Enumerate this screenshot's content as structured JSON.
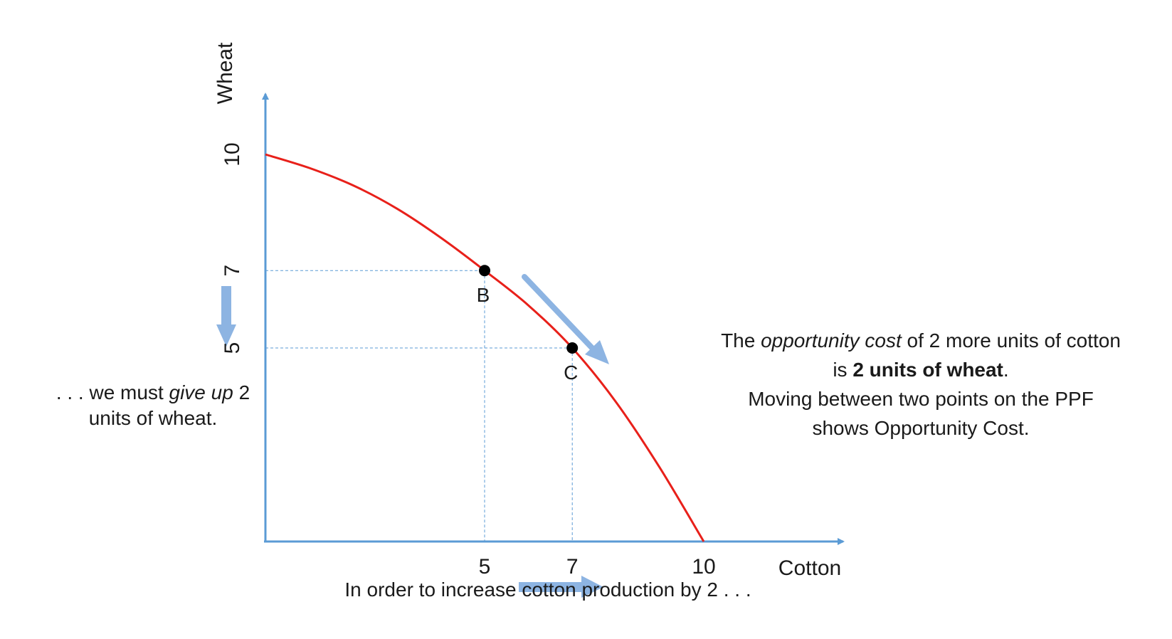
{
  "chart_data": {
    "type": "line",
    "xlabel": "Cotton",
    "ylabel": "Wheat",
    "xlim": [
      0,
      10
    ],
    "ylim": [
      0,
      10
    ],
    "x_ticks": [
      "5",
      "7",
      "10"
    ],
    "y_ticks": [
      "10",
      "7",
      "5"
    ],
    "grid": false,
    "series": [
      {
        "x": [
          0,
          1,
          2,
          3,
          4,
          5,
          6,
          7,
          8,
          9,
          10
        ],
        "y": [
          10,
          9.65,
          9.2,
          8.6,
          7.85,
          7,
          6.1,
          5,
          3.6,
          1.9,
          0
        ],
        "color": "#e8201a"
      }
    ],
    "points": [
      {
        "label": "B",
        "x": 5,
        "y": 7
      },
      {
        "label": "C",
        "x": 7,
        "y": 5
      }
    ]
  },
  "annotations": {
    "right_line1_pre": "The ",
    "right_line1_em": "opportunity cost",
    "right_line1_post": " of 2 more units of cotton",
    "right_line2_pre": "is ",
    "right_line2_bold": "2 units of wheat",
    "right_line2_post": ".",
    "right_line3": "Moving between two points on the PPF",
    "right_line4": "shows Opportunity Cost.",
    "left_line1_pre": ". . . we must ",
    "left_line1_em": "give up",
    "left_line1_post": " 2",
    "left_line2": "units of wheat.",
    "bottom": "In order to increase cotton production by 2 . . ."
  },
  "colors": {
    "axis": "#5b9bd5",
    "curve": "#e8201a",
    "arrow": "#8db4e2",
    "guides": "#5b9bd5",
    "points": "#000000"
  }
}
